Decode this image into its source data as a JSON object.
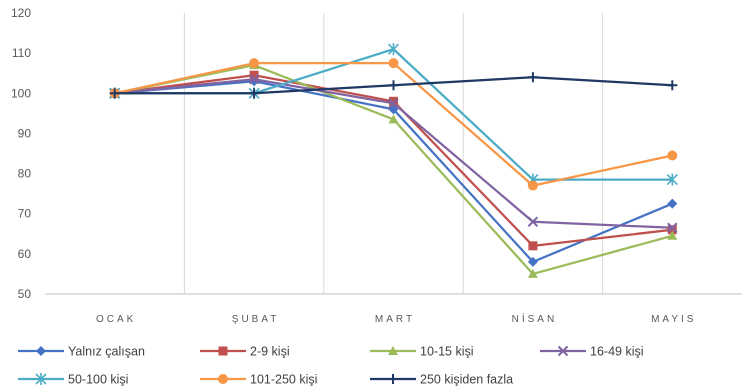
{
  "chart_data": {
    "type": "line",
    "title": "",
    "xlabel": "",
    "ylabel": "",
    "ylim": [
      50,
      120
    ],
    "yticks": [
      "50",
      "60",
      "70",
      "80",
      "90",
      "100",
      "110",
      "120"
    ],
    "categories": [
      "OCAK",
      "ŞUBAT",
      "MART",
      "NİSAN",
      "MAYIS"
    ],
    "grid": "vertical",
    "legend_position": "bottom",
    "series": [
      {
        "name": "Yalnız çalışan",
        "color": "#4472c4",
        "marker": "diamond",
        "values": [
          100,
          103,
          96,
          58,
          72.5
        ]
      },
      {
        "name": "2-9 kişi",
        "color": "#c0504d",
        "marker": "square",
        "values": [
          100,
          104.5,
          98,
          62,
          66
        ]
      },
      {
        "name": "10-15 kişi",
        "color": "#9bbb59",
        "marker": "triangle",
        "values": [
          100,
          107,
          93.5,
          55,
          64.5
        ]
      },
      {
        "name": "16-49 kişi",
        "color": "#8064a2",
        "marker": "x",
        "values": [
          100,
          103.5,
          97.5,
          68,
          66.5
        ]
      },
      {
        "name": "50-100 kişi",
        "color": "#4bacc6",
        "marker": "star",
        "values": [
          100,
          100,
          111,
          78.5,
          78.5
        ]
      },
      {
        "name": "101-250 kişi",
        "color": "#f79646",
        "marker": "circle",
        "values": [
          100,
          107.5,
          107.5,
          77,
          84.5
        ]
      },
      {
        "name": "250 kişiden fazla",
        "color": "#1f3864",
        "marker": "plus",
        "values": [
          100,
          100,
          102,
          104,
          102
        ]
      }
    ]
  }
}
